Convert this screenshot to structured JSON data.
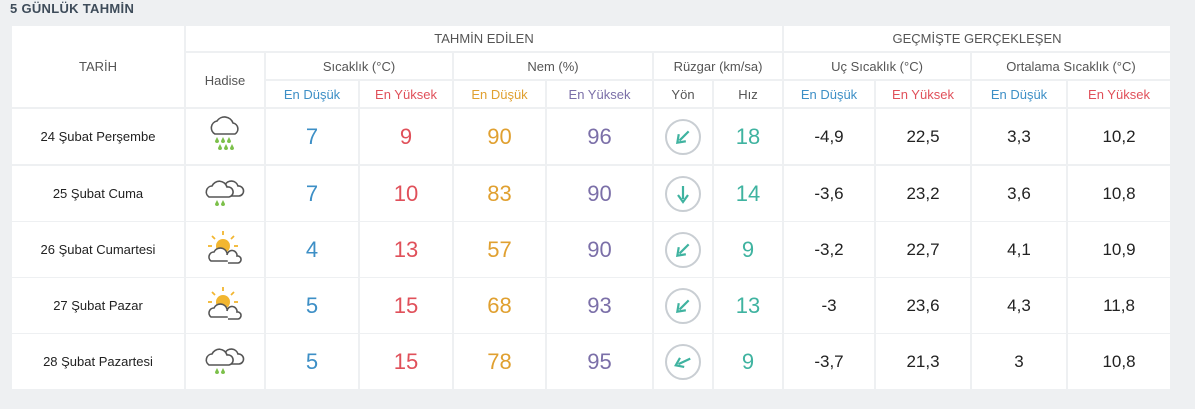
{
  "title": "5 GÜNLÜK TAHMİN",
  "header": {
    "tarih": "TARİH",
    "tahmin_edilen": "TAHMİN EDİLEN",
    "gecmiste": "GEÇMİŞTE GERÇEKLEŞEN",
    "hadise": "Hadise",
    "sicaklik": "Sıcaklık (°C)",
    "nem": "Nem (%)",
    "ruzgar": "Rüzgar (km/sa)",
    "uc_sicaklik": "Uç Sıcaklık (°C)",
    "ortalama_sicaklik": "Ortalama Sıcaklık (°C)",
    "en_dusuk": "En Düşük",
    "en_yuksek": "En Yüksek",
    "yon": "Yön",
    "hiz": "Hız"
  },
  "colors": {
    "blue": "#3d8fc6",
    "red": "#e0505a",
    "orange": "#e0a030",
    "purple": "#7b6fa8",
    "teal": "#3fb3a0"
  },
  "rows": [
    {
      "date": "24 Şubat Perşembe",
      "icon": "rain-icon",
      "temp_min": "7",
      "temp_max": "9",
      "hum_min": "90",
      "hum_max": "96",
      "wind_dir_icon": "arrow-southwest-icon",
      "wind_speed": "18",
      "ext_min": "-4,9",
      "ext_max": "22,5",
      "avg_min": "3,3",
      "avg_max": "10,2"
    },
    {
      "date": "25 Şubat Cuma",
      "icon": "cloud-rain-icon",
      "temp_min": "7",
      "temp_max": "10",
      "hum_min": "83",
      "hum_max": "90",
      "wind_dir_icon": "arrow-south-icon",
      "wind_speed": "14",
      "ext_min": "-3,6",
      "ext_max": "23,2",
      "avg_min": "3,6",
      "avg_max": "10,8"
    },
    {
      "date": "26 Şubat Cumartesi",
      "icon": "sun-cloud-icon",
      "temp_min": "4",
      "temp_max": "13",
      "hum_min": "57",
      "hum_max": "90",
      "wind_dir_icon": "arrow-southwest-icon",
      "wind_speed": "9",
      "ext_min": "-3,2",
      "ext_max": "22,7",
      "avg_min": "4,1",
      "avg_max": "10,9"
    },
    {
      "date": "27 Şubat Pazar",
      "icon": "sun-cloud-icon",
      "temp_min": "5",
      "temp_max": "15",
      "hum_min": "68",
      "hum_max": "93",
      "wind_dir_icon": "arrow-southwest-icon",
      "wind_speed": "13",
      "ext_min": "-3",
      "ext_max": "23,6",
      "avg_min": "4,3",
      "avg_max": "11,8"
    },
    {
      "date": "28 Şubat Pazartesi",
      "icon": "cloud-rain-icon",
      "temp_min": "5",
      "temp_max": "15",
      "hum_min": "78",
      "hum_max": "95",
      "wind_dir_icon": "arrow-west-southwest-icon",
      "wind_speed": "9",
      "ext_min": "-3,7",
      "ext_max": "21,3",
      "avg_min": "3",
      "avg_max": "10,8"
    }
  ]
}
